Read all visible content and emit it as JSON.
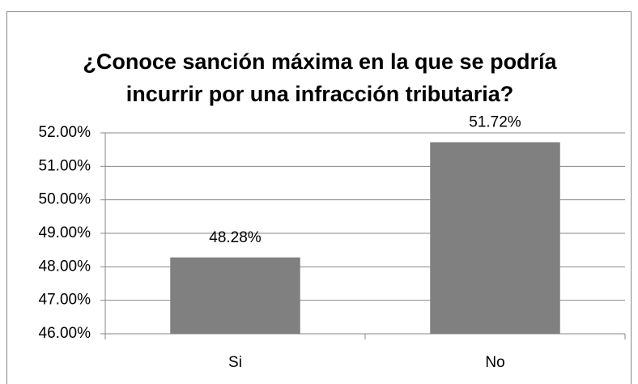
{
  "chart_data": {
    "type": "bar",
    "title": "¿Conoce sanción máxima en la que se podría incurrir por una infracción tributaria?",
    "categories": [
      "Si",
      "No"
    ],
    "values": [
      48.28,
      51.72
    ],
    "value_labels": [
      "48.28%",
      "51.72%"
    ],
    "color": "#808080",
    "ylim": [
      46,
      52
    ],
    "yticks": [
      {
        "value": 46,
        "label": "46.00%"
      },
      {
        "value": 47,
        "label": "47.00%"
      },
      {
        "value": 48,
        "label": "48.00%"
      },
      {
        "value": 49,
        "label": "49.00%"
      },
      {
        "value": 50,
        "label": "50.00%"
      },
      {
        "value": 51,
        "label": "51.00%"
      },
      {
        "value": 52,
        "label": "52.00%"
      }
    ],
    "grid": true
  }
}
